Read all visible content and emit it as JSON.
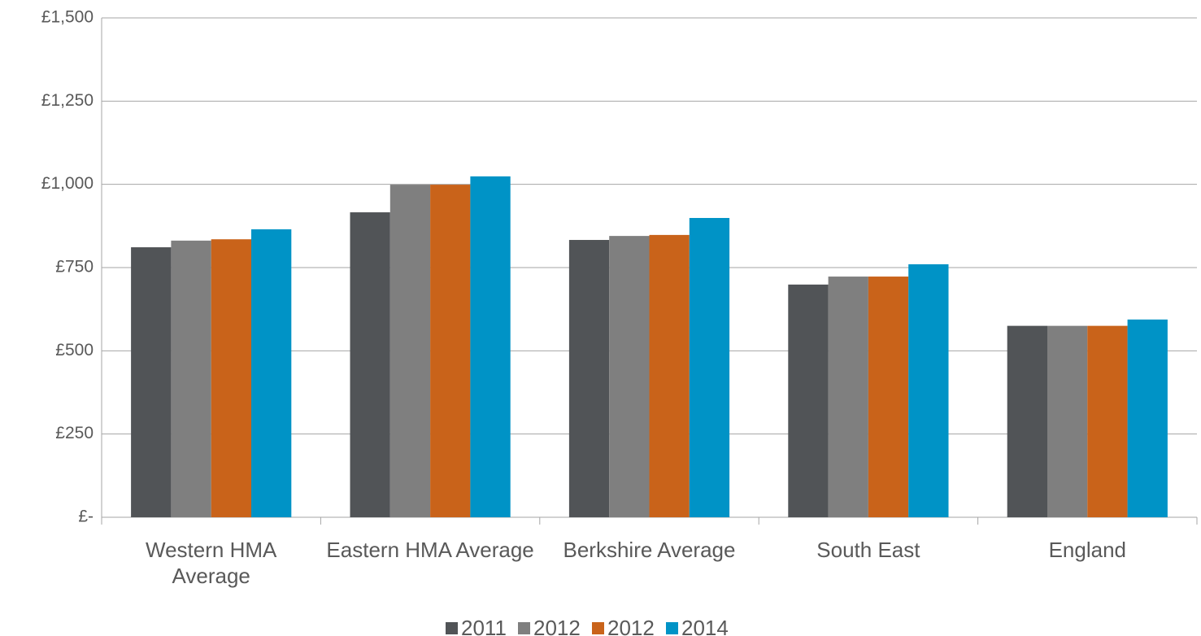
{
  "chart_data": {
    "type": "bar",
    "categories": [
      "Western HMA Average",
      "Eastern HMA Average",
      "Berkshire Average",
      "South East",
      "England"
    ],
    "series": [
      {
        "name": "2011",
        "color": "#515457",
        "values": [
          811,
          916,
          833,
          699,
          575
        ]
      },
      {
        "name": "2012",
        "color": "#7f7f7f",
        "values": [
          831,
          999,
          845,
          723,
          575
        ]
      },
      {
        "name": "2012",
        "color": "#c9631a",
        "values": [
          835,
          999,
          848,
          723,
          575
        ]
      },
      {
        "name": "2014",
        "color": "#0093c6",
        "values": [
          865,
          1024,
          899,
          760,
          594
        ]
      }
    ],
    "ylim": [
      0,
      1500
    ],
    "yticks": [
      {
        "value": 0,
        "label": "£-"
      },
      {
        "value": 250,
        "label": "£250"
      },
      {
        "value": 500,
        "label": "£500"
      },
      {
        "value": 750,
        "label": "£750"
      },
      {
        "value": 1000,
        "label": "£1,000"
      },
      {
        "value": 1250,
        "label": "£1,250"
      },
      {
        "value": 1500,
        "label": "£1,500"
      }
    ],
    "grid": true,
    "legend": "bottom"
  }
}
